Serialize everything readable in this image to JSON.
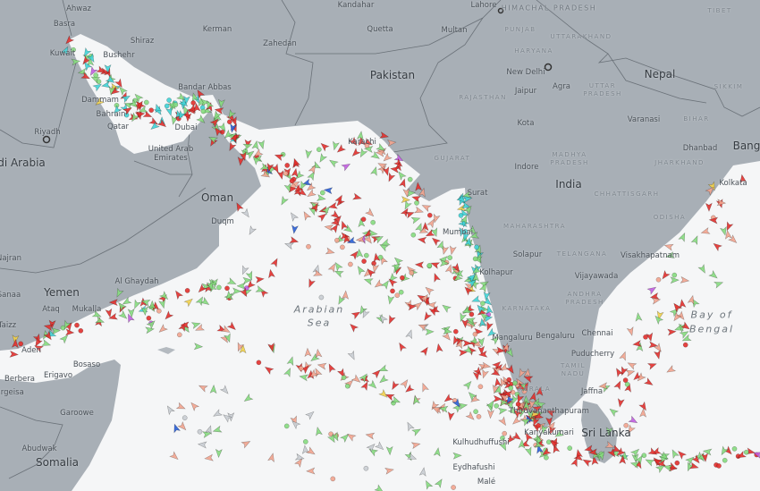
{
  "map": {
    "land_color": "#a8afb6",
    "sea_color": "#f5f6f7",
    "border_color": "#6a7178",
    "ship_colors": {
      "tanker": "#e2302c",
      "cargo": "#86db7e",
      "tug_special": "#40d4d6",
      "passenger": "#2a5fd6",
      "pleasure": "#c25ee0",
      "fishing": "#f2a48e",
      "unknown": "#c9cdd1",
      "high_speed": "#f2d24a"
    }
  },
  "labels": {
    "countries": [
      "Pakistan",
      "Nepal",
      "India",
      "Oman",
      "Yemen",
      "Somalia",
      "Sri Lanka",
      "di Arabia",
      "United Arab",
      "Emirates",
      "Bang"
    ],
    "seas": [
      "Arabian",
      "Sea",
      "Bay of",
      "Bengal"
    ],
    "states": [
      "PUNJAB",
      "HARYANA",
      "UTTARAKHAND",
      "RAJASTHAN",
      "UTTAR",
      "PRADESH",
      "BIHAR",
      "GUJARAT",
      "MADHYA",
      "PRADESH",
      "JHARKHAND",
      "CHHATTISGARH",
      "ODISHA",
      "MAHARASHTRA",
      "TELANGANA",
      "ANDHRA",
      "PRADESH",
      "KARNATAKA",
      "TAMIL",
      "NADU",
      "KERALA",
      "HIMACHAL PRADESH",
      "TIBET",
      "SIKKIM"
    ],
    "cities": [
      "Ahwaz",
      "Basra",
      "Kuwait",
      "Shiraz",
      "Kerman",
      "Zahedan",
      "Kandahar",
      "Quetta",
      "Lahore",
      "Multan",
      "New Delhi",
      "Jaipur",
      "Agra",
      "Kota",
      "Varanasi",
      "Dhanbad",
      "Kolkata",
      "Indore",
      "Surat",
      "Mumbai",
      "Solapur",
      "Kolhapur",
      "Visakhapatnam",
      "Vijayawada",
      "Mangaluru",
      "Bengaluru",
      "Chennai",
      "Puducherry",
      "Jaffna",
      "Thiruvananthapuram",
      "Kanyakumari",
      "Kulhudhuffushi",
      "Eydhafushi",
      "Malé",
      "Karachi",
      "Bandar Abbas",
      "Dammam",
      "Bahrain",
      "Qatar",
      "Riyadh",
      "Dubai",
      "Duqm",
      "Al Ghaydah",
      "Mukalla",
      "Ataq",
      "Aden",
      "Bosaso",
      "Erigavo",
      "Berbera",
      "Hargeisa",
      "Garoowe",
      "Abudwak",
      "Najran",
      "Sanaa",
      "Taizz",
      "Bushehr"
    ]
  }
}
